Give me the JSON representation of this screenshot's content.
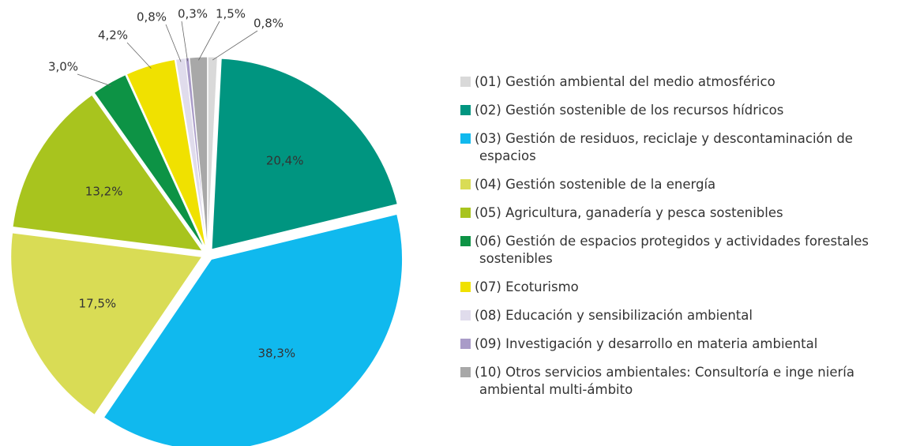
{
  "chart_data": {
    "type": "pie",
    "categories": [
      "(01) Gestión ambiental del medio atmosférico",
      "(02) Gestión sostenible de los recursos hídricos",
      "(03) Gestión de residuos, reciclaje y descontaminación de espacios",
      "(04) Gestión sostenible de la energía",
      "(05) Agricultura, ganadería y pesca sostenibles",
      "(06) Gestión de espacios protegidos y actividades forestales sostenibles",
      "(07) Ecoturismo",
      "(08) Educación y sensibilización ambiental",
      "(09) Investigación y desarrollo en materia ambiental",
      "(10) Otros servicios ambientales: Consultoría e inge niería ambiental multi-ámbito"
    ],
    "values": [
      0.8,
      20.4,
      38.3,
      17.5,
      13.2,
      3.0,
      4.2,
      0.8,
      0.3,
      1.5
    ],
    "value_labels": [
      "0,8%",
      "20,4%",
      "38,3%",
      "17,5%",
      "13,2%",
      "3,0%",
      "4,2%",
      "0,8%",
      "0,3%",
      "1,5%"
    ],
    "colors": [
      "#d9d9d9",
      "#009580",
      "#10b9ee",
      "#d9dc55",
      "#a8c41e",
      "#0d9345",
      "#f0e100",
      "#e0dcec",
      "#a99bc8",
      "#a8a8a8"
    ],
    "legend": "right"
  }
}
